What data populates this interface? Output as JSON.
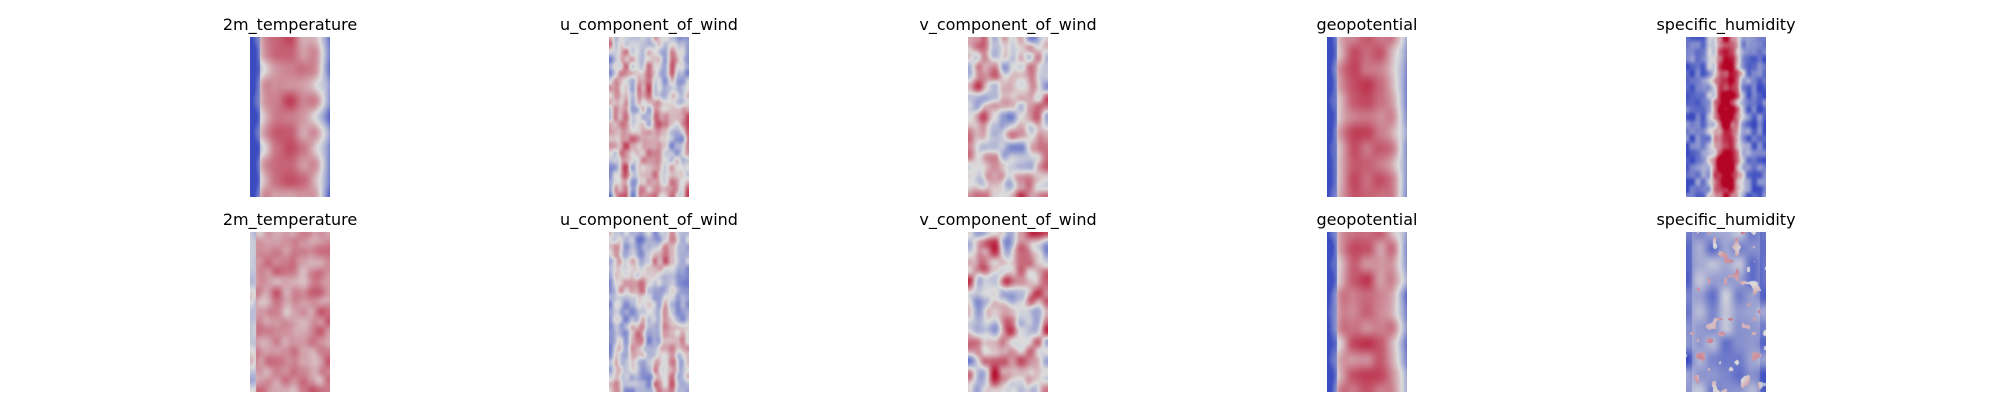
{
  "chart_data": {
    "type": "heatmap",
    "colormap": "coolwarm",
    "colormap_stops": [
      "#3b4cc0",
      "#dddddd",
      "#b40426"
    ],
    "axes": "off",
    "rows": 2,
    "columns": 5,
    "panels": [
      {
        "title": "2m_temperature",
        "row": 0,
        "col": 0,
        "pattern": "center_band",
        "level": 0.75,
        "variability": 0.25
      },
      {
        "title": "u_component_of_wind",
        "row": 0,
        "col": 1,
        "pattern": "streaky",
        "level": 0.5,
        "variability": 0.45
      },
      {
        "title": "v_component_of_wind",
        "row": 0,
        "col": 2,
        "pattern": "cellular",
        "level": 0.52,
        "variability": 0.4
      },
      {
        "title": "geopotential",
        "row": 0,
        "col": 3,
        "pattern": "center_band",
        "level": 0.8,
        "variability": 0.2
      },
      {
        "title": "specific_humidity",
        "row": 0,
        "col": 4,
        "pattern": "narrow_center",
        "level": 0.4,
        "variability": 0.6
      },
      {
        "title": "2m_temperature",
        "row": 1,
        "col": 0,
        "pattern": "noisy_warm",
        "level": 0.68,
        "variability": 0.2
      },
      {
        "title": "u_component_of_wind",
        "row": 1,
        "col": 1,
        "pattern": "streaky",
        "level": 0.45,
        "variability": 0.4
      },
      {
        "title": "v_component_of_wind",
        "row": 1,
        "col": 2,
        "pattern": "cellular",
        "level": 0.55,
        "variability": 0.45
      },
      {
        "title": "geopotential",
        "row": 1,
        "col": 3,
        "pattern": "center_band",
        "level": 0.78,
        "variability": 0.25
      },
      {
        "title": "specific_humidity",
        "row": 1,
        "col": 4,
        "pattern": "cool_spotty",
        "level": 0.28,
        "variability": 0.35
      }
    ]
  }
}
